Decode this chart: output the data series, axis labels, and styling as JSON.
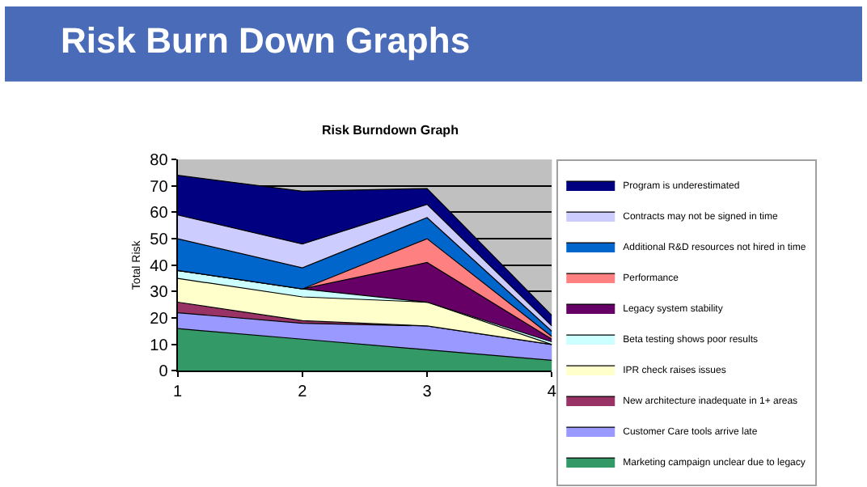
{
  "chart_data": {
    "type": "area",
    "title": "Risk Burn Down Graphs",
    "subtitle": "Risk Burndown Graph",
    "ylabel": "Total Risk",
    "x": [
      1,
      2,
      3,
      4
    ],
    "xlim": [
      1,
      4
    ],
    "xticks": [
      1,
      2,
      3,
      4
    ],
    "ylim": [
      0,
      80
    ],
    "yticks": [
      0,
      10,
      20,
      30,
      40,
      50,
      60,
      70,
      80
    ],
    "stacked": true,
    "grid": "y",
    "legend": "right",
    "series": [
      {
        "name": "Marketing campaign unclear due to legacy",
        "color": "#339966",
        "values": [
          16,
          12,
          8,
          4
        ]
      },
      {
        "name": "Customer Care tools arrive late",
        "color": "#9999ff",
        "values": [
          6,
          6,
          9,
          6
        ]
      },
      {
        "name": "New architecture inadequate in 1+ areas",
        "color": "#993366",
        "values": [
          4,
          1,
          0,
          0
        ]
      },
      {
        "name": "IPR check raises issues",
        "color": "#ffffcc",
        "values": [
          9,
          9,
          9,
          0
        ]
      },
      {
        "name": "Beta testing shows poor results",
        "color": "#ccffff",
        "values": [
          3,
          3,
          0,
          1
        ]
      },
      {
        "name": "Legacy system stability",
        "color": "#660066",
        "values": [
          0,
          0,
          15,
          1
        ]
      },
      {
        "name": "Performance",
        "color": "#ff8080",
        "values": [
          0,
          0,
          9,
          1
        ]
      },
      {
        "name": "Additional R&D resources not hired in time",
        "color": "#0066cc",
        "values": [
          12,
          8,
          8,
          2
        ]
      },
      {
        "name": "Contracts may not be signed in time",
        "color": "#ccccff",
        "values": [
          9,
          9,
          5,
          2
        ]
      },
      {
        "name": "Program is underestimated",
        "color": "#000080",
        "values": [
          15,
          20,
          6,
          4
        ]
      }
    ]
  }
}
